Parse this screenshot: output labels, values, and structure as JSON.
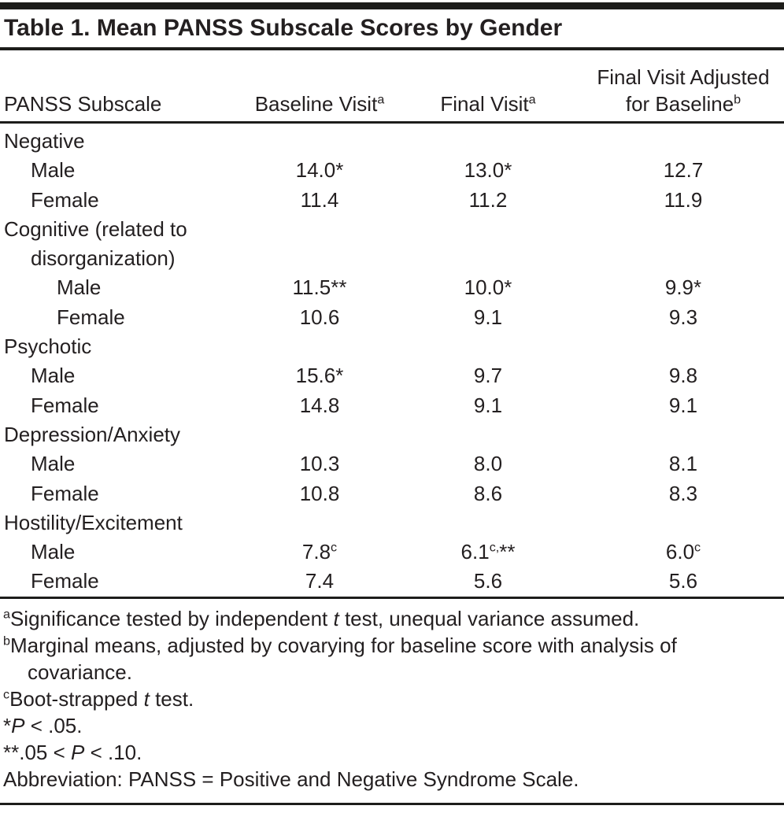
{
  "title": "Table 1. Mean PANSS Subscale Scores by Gender",
  "columns": {
    "col1": "PANSS Subscale",
    "col2": "Baseline Visit{a}",
    "col3": "Final Visit{a}",
    "col4_line1": "Final Visit Adjusted",
    "col4_line2": "for Baseline{b}"
  },
  "rows": [
    {
      "label": "Negative",
      "indent": 0,
      "values": [
        "",
        "",
        ""
      ]
    },
    {
      "label": "Male",
      "indent": 1,
      "values": [
        "14.0*",
        "13.0*",
        "12.7"
      ]
    },
    {
      "label": "Female",
      "indent": 1,
      "values": [
        "11.4",
        "11.2",
        "11.9"
      ]
    },
    {
      "label": "Cognitive (related to",
      "indent": 0,
      "values": [
        "",
        "",
        ""
      ]
    },
    {
      "label": "disorganization)",
      "indent": 1,
      "values": [
        "",
        "",
        ""
      ]
    },
    {
      "label": "Male",
      "indent": 2,
      "values": [
        "11.5**",
        "10.0*",
        "9.9*"
      ]
    },
    {
      "label": "Female",
      "indent": 2,
      "values": [
        "10.6",
        "9.1",
        "9.3"
      ]
    },
    {
      "label": "Psychotic",
      "indent": 0,
      "values": [
        "",
        "",
        ""
      ]
    },
    {
      "label": "Male",
      "indent": 1,
      "values": [
        "15.6*",
        "9.7",
        "9.8"
      ]
    },
    {
      "label": "Female",
      "indent": 1,
      "values": [
        "14.8",
        "9.1",
        "9.1"
      ]
    },
    {
      "label": "Depression/Anxiety",
      "indent": 0,
      "values": [
        "",
        "",
        ""
      ]
    },
    {
      "label": "Male",
      "indent": 1,
      "values": [
        "10.3",
        "8.0",
        "8.1"
      ]
    },
    {
      "label": "Female",
      "indent": 1,
      "values": [
        "10.8",
        "8.6",
        "8.3"
      ]
    },
    {
      "label": "Hostility/Excitement",
      "indent": 0,
      "values": [
        "",
        "",
        ""
      ]
    },
    {
      "label": "Male",
      "indent": 1,
      "values": [
        "7.8{c}",
        "6.1{c,}**",
        "6.0{c}"
      ]
    },
    {
      "label": "Female",
      "indent": 1,
      "values": [
        "7.4",
        "5.6",
        "5.6"
      ]
    }
  ],
  "footnotes": [
    {
      "text": "{a}Significance tested by independent |t| test, unequal variance assumed.",
      "indent": false
    },
    {
      "text": "{b}Marginal means, adjusted by covarying for baseline score with analysis of",
      "indent": false
    },
    {
      "text": "covariance.",
      "indent": true
    },
    {
      "text": "{c}Boot-strapped |t| test.",
      "indent": false
    },
    {
      "text": "*|P| < .05.",
      "indent": false
    },
    {
      "text": "**.05 < |P| < .10.",
      "indent": false
    },
    {
      "text": "Abbreviation: PANSS = Positive and Negative Syndrome Scale.",
      "indent": false
    }
  ],
  "colors": {
    "ink": "#231f20",
    "background": "#ffffff",
    "rule": "#1d1d1b"
  }
}
